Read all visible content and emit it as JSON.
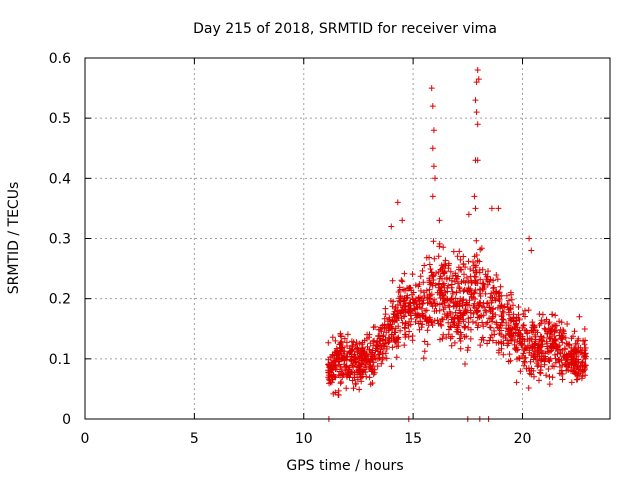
{
  "chart_data": {
    "type": "scatter",
    "title": "Day 215 of 2018, SRMTID for receiver vima",
    "xlabel": "GPS time / hours",
    "ylabel": "SRMTID / TECUs",
    "xlim": [
      0,
      24
    ],
    "ylim": [
      0,
      0.6
    ],
    "xticks": [
      "0",
      "5",
      "10",
      "15",
      "20"
    ],
    "yticks": [
      "0",
      "0.1",
      "0.2",
      "0.3",
      "0.4",
      "0.5",
      "0.6"
    ],
    "grid": true,
    "marker": "+",
    "colors": {
      "series": "#e00000",
      "grid": "#a0a0a0",
      "axis": "#000000"
    },
    "envelope": {
      "x": [
        11.1,
        11.5,
        12.0,
        12.5,
        13.0,
        13.5,
        14.0,
        14.5,
        15.0,
        15.5,
        16.0,
        16.5,
        17.0,
        17.5,
        18.0,
        18.5,
        19.0,
        19.5,
        20.0,
        20.5,
        21.0,
        21.5,
        22.0,
        22.5,
        22.9
      ],
      "median": [
        0.08,
        0.09,
        0.1,
        0.09,
        0.1,
        0.12,
        0.15,
        0.18,
        0.19,
        0.19,
        0.21,
        0.2,
        0.19,
        0.19,
        0.21,
        0.19,
        0.17,
        0.15,
        0.13,
        0.12,
        0.12,
        0.12,
        0.11,
        0.1,
        0.1
      ],
      "spread": [
        0.03,
        0.04,
        0.04,
        0.04,
        0.04,
        0.04,
        0.05,
        0.06,
        0.06,
        0.07,
        0.07,
        0.07,
        0.07,
        0.07,
        0.07,
        0.07,
        0.06,
        0.05,
        0.05,
        0.05,
        0.05,
        0.05,
        0.04,
        0.04,
        0.04
      ]
    },
    "spikes": [
      {
        "x": 15.85,
        "y": 0.55
      },
      {
        "x": 15.9,
        "y": 0.52
      },
      {
        "x": 15.95,
        "y": 0.48
      },
      {
        "x": 15.9,
        "y": 0.45
      },
      {
        "x": 15.95,
        "y": 0.42
      },
      {
        "x": 16.0,
        "y": 0.4
      },
      {
        "x": 15.9,
        "y": 0.37
      },
      {
        "x": 17.95,
        "y": 0.58
      },
      {
        "x": 17.9,
        "y": 0.56
      },
      {
        "x": 18.0,
        "y": 0.565
      },
      {
        "x": 17.85,
        "y": 0.53
      },
      {
        "x": 17.9,
        "y": 0.51
      },
      {
        "x": 17.95,
        "y": 0.49
      },
      {
        "x": 17.85,
        "y": 0.43
      },
      {
        "x": 17.95,
        "y": 0.43
      },
      {
        "x": 17.8,
        "y": 0.37
      },
      {
        "x": 17.85,
        "y": 0.35
      },
      {
        "x": 17.55,
        "y": 0.34
      },
      {
        "x": 14.3,
        "y": 0.36
      },
      {
        "x": 14.5,
        "y": 0.33
      },
      {
        "x": 18.6,
        "y": 0.35
      },
      {
        "x": 18.9,
        "y": 0.35
      },
      {
        "x": 20.3,
        "y": 0.3
      },
      {
        "x": 20.4,
        "y": 0.28
      },
      {
        "x": 14.0,
        "y": 0.32
      },
      {
        "x": 16.2,
        "y": 0.33
      },
      {
        "x": 22.6,
        "y": 0.17
      }
    ],
    "zeros": [
      11.15,
      14.8,
      17.5,
      18.05,
      18.45
    ]
  }
}
